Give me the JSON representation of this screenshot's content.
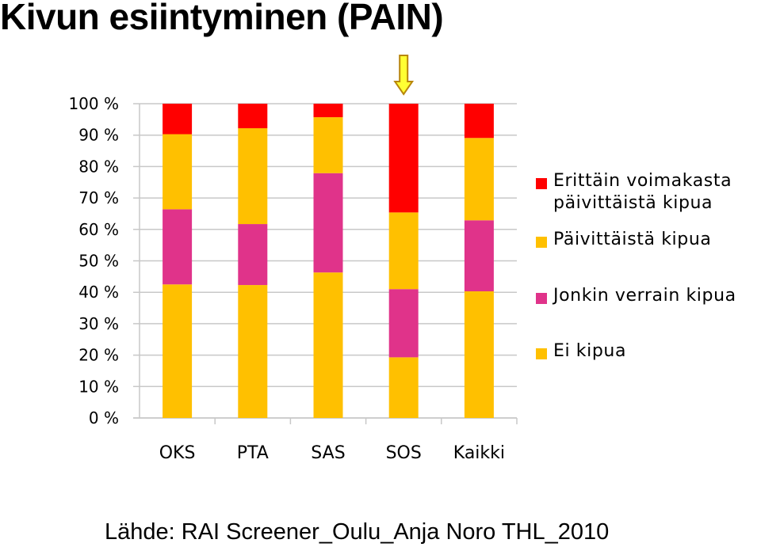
{
  "title": "Kivun esiintyminen (PAIN)",
  "source": "Lähde: RAI Screener_Oulu_Anja Noro THL_2010",
  "highlight_marker": "arrow-down-icon",
  "chart_data": {
    "type": "bar",
    "stacked": true,
    "percent": true,
    "title": "",
    "xlabel": "",
    "ylabel": "",
    "ylim": [
      0,
      100
    ],
    "yticks": [
      "0 %",
      "10 %",
      "20 %",
      "30 %",
      "40 %",
      "50 %",
      "60 %",
      "70 %",
      "80 %",
      "90 %",
      "100 %"
    ],
    "grid": true,
    "legend_position": "right",
    "categories": [
      "OKS",
      "PTA",
      "SAS",
      "SOS",
      "Kaikki"
    ],
    "highlighted_category": "SOS",
    "series": [
      {
        "name": "Ei kipua",
        "color": "#FFC000",
        "values": [
          42.5,
          42.3,
          46.3,
          19.3,
          40.3
        ]
      },
      {
        "name": "Jonkin verrain kipua",
        "color": "#E0338A",
        "values": [
          23.9,
          19.4,
          31.6,
          21.7,
          22.6
        ]
      },
      {
        "name": "Päivittäistä kipua",
        "color": "#FFC000",
        "values": [
          23.9,
          30.5,
          17.8,
          24.4,
          26.2
        ]
      },
      {
        "name": "Erittäin voimakasta\npäivittäistä kipua",
        "color": "#FF0000",
        "values": [
          9.7,
          7.8,
          4.3,
          34.6,
          10.9
        ]
      }
    ]
  }
}
